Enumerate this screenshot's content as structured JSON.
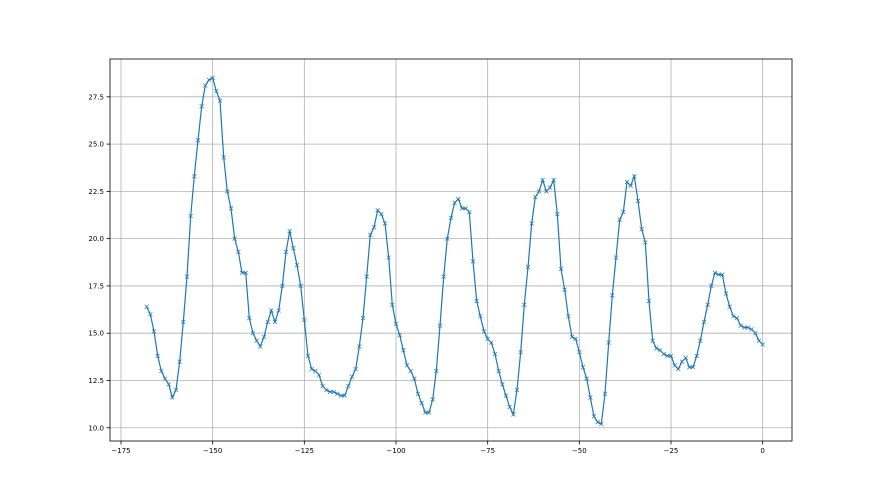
{
  "chart_data": {
    "type": "line",
    "marker": "x",
    "title": "",
    "xlabel": "",
    "ylabel": "",
    "xlim": [
      -178,
      8
    ],
    "ylim": [
      9.3,
      29.5
    ],
    "grid": true,
    "color": "#1f77b4",
    "xticks": [
      -175,
      -150,
      -125,
      -100,
      -75,
      -50,
      -25,
      0
    ],
    "xtick_labels": [
      "−175",
      "−150",
      "−125",
      "−100",
      "−75",
      "−50",
      "−25",
      "0"
    ],
    "yticks": [
      10.0,
      12.5,
      15.0,
      17.5,
      20.0,
      22.5,
      25.0,
      27.5
    ],
    "ytick_labels": [
      "10.0",
      "12.5",
      "15.0",
      "17.5",
      "20.0",
      "22.5",
      "25.0",
      "27.5"
    ],
    "points": [
      [
        -168,
        16.4
      ],
      [
        -167,
        16.0
      ],
      [
        -166,
        15.1
      ],
      [
        -165,
        13.8
      ],
      [
        -164,
        13.0
      ],
      [
        -163,
        12.6
      ],
      [
        -162,
        12.3
      ],
      [
        -161,
        11.6
      ],
      [
        -160,
        12.0
      ],
      [
        -159,
        13.5
      ],
      [
        -158,
        15.6
      ],
      [
        -157,
        18.0
      ],
      [
        -156,
        21.2
      ],
      [
        -155,
        23.3
      ],
      [
        -154,
        25.2
      ],
      [
        -153,
        27.0
      ],
      [
        -152,
        28.1
      ],
      [
        -151,
        28.4
      ],
      [
        -150,
        28.5
      ],
      [
        -149,
        27.8
      ],
      [
        -148,
        27.3
      ],
      [
        -147,
        24.3
      ],
      [
        -146,
        22.5
      ],
      [
        -145,
        21.6
      ],
      [
        -144,
        20.0
      ],
      [
        -143,
        19.3
      ],
      [
        -142,
        18.2
      ],
      [
        -141,
        18.2
      ],
      [
        -140,
        15.8
      ],
      [
        -139,
        15.0
      ],
      [
        -138,
        14.6
      ],
      [
        -137,
        14.3
      ],
      [
        -136,
        14.8
      ],
      [
        -135,
        15.6
      ],
      [
        -134,
        16.2
      ],
      [
        -133,
        15.6
      ],
      [
        -132,
        16.2
      ],
      [
        -131,
        17.5
      ],
      [
        -130,
        19.3
      ],
      [
        -129,
        20.4
      ],
      [
        -128,
        19.5
      ],
      [
        -127,
        18.6
      ],
      [
        -126,
        17.5
      ],
      [
        -125,
        15.7
      ],
      [
        -124,
        13.8
      ],
      [
        -123,
        13.1
      ],
      [
        -122,
        13.0
      ],
      [
        -121,
        12.8
      ],
      [
        -120,
        12.2
      ],
      [
        -119,
        12.0
      ],
      [
        -118,
        11.9
      ],
      [
        -117,
        11.9
      ],
      [
        -116,
        11.8
      ],
      [
        -115,
        11.7
      ],
      [
        -114,
        11.7
      ],
      [
        -113,
        12.2
      ],
      [
        -112,
        12.7
      ],
      [
        -111,
        13.1
      ],
      [
        -110,
        14.3
      ],
      [
        -109,
        15.8
      ],
      [
        -108,
        18.0
      ],
      [
        -107,
        20.2
      ],
      [
        -106,
        20.6
      ],
      [
        -105,
        21.5
      ],
      [
        -104,
        21.3
      ],
      [
        -103,
        20.8
      ],
      [
        -102,
        19.0
      ],
      [
        -101,
        16.5
      ],
      [
        -100,
        15.5
      ],
      [
        -99,
        14.9
      ],
      [
        -98,
        14.1
      ],
      [
        -97,
        13.3
      ],
      [
        -96,
        13.0
      ],
      [
        -95,
        12.6
      ],
      [
        -94,
        11.8
      ],
      [
        -93,
        11.3
      ],
      [
        -92,
        10.8
      ],
      [
        -91,
        10.8
      ],
      [
        -90,
        11.5
      ],
      [
        -89,
        13.0
      ],
      [
        -88,
        15.4
      ],
      [
        -87,
        18.0
      ],
      [
        -86,
        20.0
      ],
      [
        -85,
        21.1
      ],
      [
        -84,
        21.9
      ],
      [
        -83,
        22.1
      ],
      [
        -82,
        21.6
      ],
      [
        -81,
        21.6
      ],
      [
        -80,
        21.4
      ],
      [
        -79,
        18.8
      ],
      [
        -78,
        16.7
      ],
      [
        -77,
        15.9
      ],
      [
        -76,
        15.1
      ],
      [
        -75,
        14.7
      ],
      [
        -74,
        14.5
      ],
      [
        -73,
        13.9
      ],
      [
        -72,
        13.0
      ],
      [
        -71,
        12.3
      ],
      [
        -70,
        11.7
      ],
      [
        -69,
        11.1
      ],
      [
        -68,
        10.7
      ],
      [
        -67,
        12.0
      ],
      [
        -66,
        14.0
      ],
      [
        -65,
        16.5
      ],
      [
        -64,
        18.5
      ],
      [
        -63,
        20.8
      ],
      [
        -62,
        22.2
      ],
      [
        -61,
        22.5
      ],
      [
        -60,
        23.1
      ],
      [
        -59,
        22.5
      ],
      [
        -58,
        22.7
      ],
      [
        -57,
        23.1
      ],
      [
        -56,
        21.3
      ],
      [
        -55,
        18.4
      ],
      [
        -54,
        17.3
      ],
      [
        -53,
        15.9
      ],
      [
        -52,
        14.8
      ],
      [
        -51,
        14.7
      ],
      [
        -50,
        14.0
      ],
      [
        -49,
        13.2
      ],
      [
        -48,
        12.6
      ],
      [
        -47,
        11.6
      ],
      [
        -46,
        10.6
      ],
      [
        -45,
        10.3
      ],
      [
        -44,
        10.2
      ],
      [
        -43,
        11.8
      ],
      [
        -42,
        14.5
      ],
      [
        -41,
        17.0
      ],
      [
        -40,
        19.0
      ],
      [
        -39,
        21.0
      ],
      [
        -38,
        21.4
      ],
      [
        -37,
        23.0
      ],
      [
        -36,
        22.8
      ],
      [
        -35,
        23.3
      ],
      [
        -34,
        22.0
      ],
      [
        -33,
        20.5
      ],
      [
        -32,
        19.8
      ],
      [
        -31,
        16.7
      ],
      [
        -30,
        14.6
      ],
      [
        -29,
        14.2
      ],
      [
        -28,
        14.1
      ],
      [
        -27,
        13.9
      ],
      [
        -26,
        13.8
      ],
      [
        -25,
        13.8
      ],
      [
        -24,
        13.3
      ],
      [
        -23,
        13.1
      ],
      [
        -22,
        13.5
      ],
      [
        -21,
        13.7
      ],
      [
        -20,
        13.2
      ],
      [
        -19,
        13.2
      ],
      [
        -18,
        13.8
      ],
      [
        -17,
        14.6
      ],
      [
        -16,
        15.6
      ],
      [
        -15,
        16.5
      ],
      [
        -14,
        17.5
      ],
      [
        -13,
        18.2
      ],
      [
        -12,
        18.1
      ],
      [
        -11,
        18.1
      ],
      [
        -10,
        17.1
      ],
      [
        -9,
        16.4
      ],
      [
        -8,
        15.9
      ],
      [
        -7,
        15.8
      ],
      [
        -6,
        15.4
      ],
      [
        -5,
        15.3
      ],
      [
        -4,
        15.3
      ],
      [
        -3,
        15.2
      ],
      [
        -2,
        15.0
      ],
      [
        -1,
        14.6
      ],
      [
        0,
        14.4
      ]
    ]
  }
}
